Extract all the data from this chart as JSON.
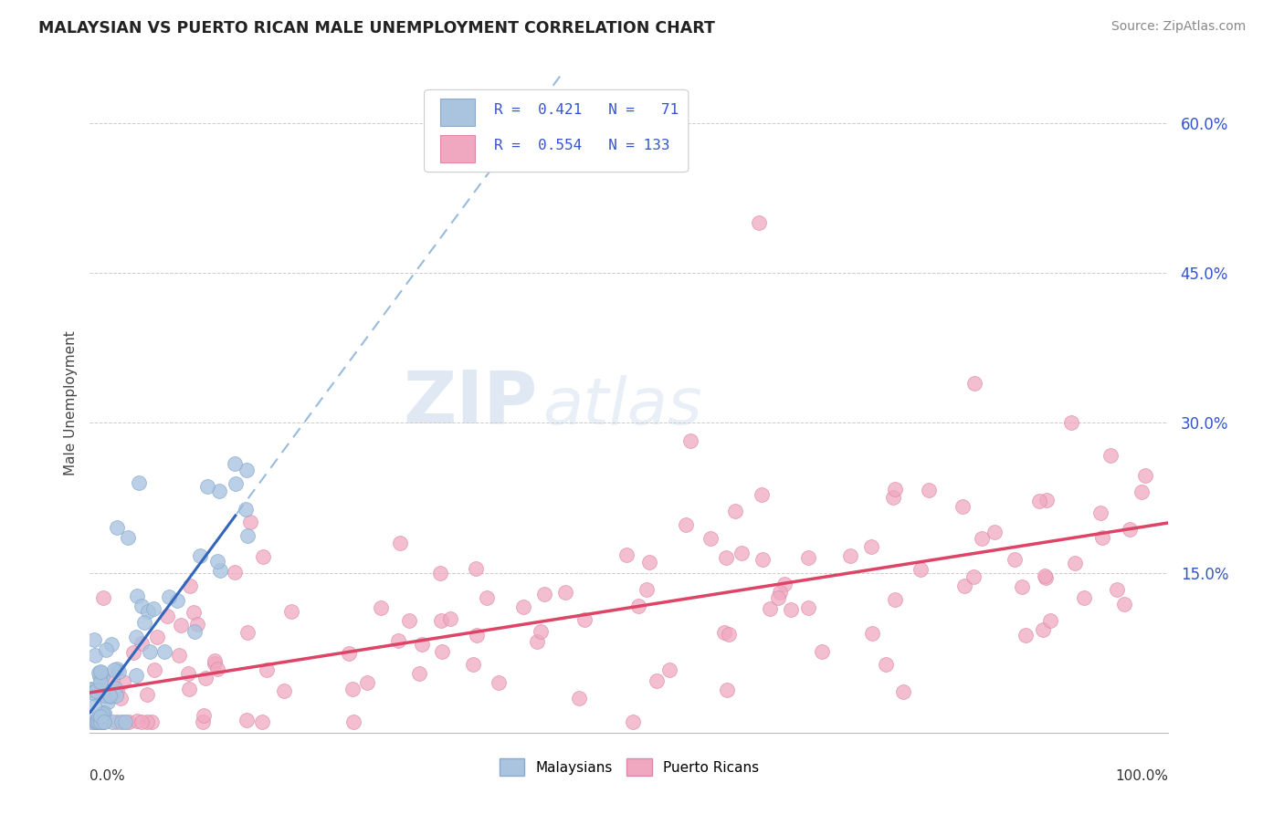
{
  "title": "MALAYSIAN VS PUERTO RICAN MALE UNEMPLOYMENT CORRELATION CHART",
  "source_text": "Source: ZipAtlas.com",
  "ylabel": "Male Unemployment",
  "watermark_zip": "ZIP",
  "watermark_atlas": "atlas",
  "xlim": [
    0.0,
    1.0
  ],
  "ylim": [
    -0.01,
    0.65
  ],
  "ytick_vals": [
    0.15,
    0.3,
    0.45,
    0.6
  ],
  "ytick_labels": [
    "15.0%",
    "30.0%",
    "45.0%",
    "60.0%"
  ],
  "legend": {
    "malaysian_R": "0.421",
    "malaysian_N": "71",
    "puerto_rican_R": "0.554",
    "puerto_rican_N": "133"
  },
  "malaysian_color": "#aac4e0",
  "malaysian_edge_color": "#88aacc",
  "puerto_rican_color": "#f0a8c0",
  "puerto_rican_edge_color": "#dd88aa",
  "malaysian_line_color": "#3366bb",
  "malaysian_dash_color": "#99bbdd",
  "puerto_rican_line_color": "#dd4466",
  "background_color": "#ffffff",
  "title_color": "#222222",
  "legend_value_color": "#3355cc",
  "grid_color": "#cccccc",
  "right_tick_color": "#3355cc",
  "source_color": "#888888"
}
